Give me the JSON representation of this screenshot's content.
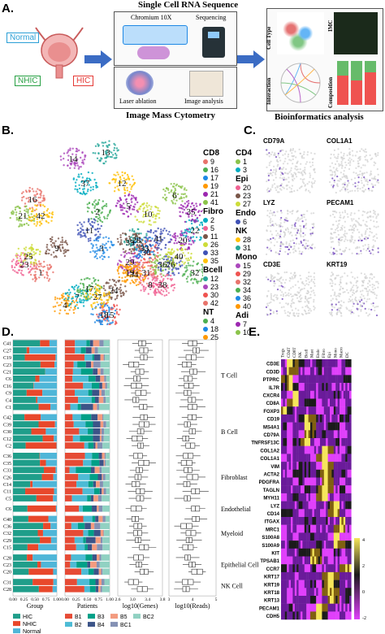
{
  "panelA": {
    "label": "A.",
    "rna_title": "Single Cell RNA Sequence",
    "chromium": "Chromium 10X",
    "sequencing": "Sequencing",
    "laser": "Laser ablation",
    "image_analysis": "Image analysis",
    "imc_title": "Image Mass Cytometry",
    "bio_title": "Bioinformatics analysis",
    "cell_type": "Cell Type",
    "imc": "IMC",
    "interaction": "Interaction",
    "composition": "Composition",
    "groups": [
      "Normal",
      "NHIC",
      "HIC"
    ]
  },
  "panelB": {
    "label": "B.",
    "cluster_numbers": [
      "1",
      "2",
      "3",
      "4",
      "5",
      "6",
      "7",
      "8",
      "9",
      "10",
      "11",
      "12",
      "13",
      "14",
      "15",
      "16",
      "17",
      "18",
      "19",
      "20",
      "21",
      "22",
      "23",
      "24",
      "25",
      "26",
      "27",
      "28",
      "29",
      "30",
      "31",
      "32",
      "33",
      "34",
      "35",
      "36",
      "37",
      "38",
      "39",
      "40",
      "41",
      "42"
    ],
    "legend": [
      {
        "group": "CD8",
        "items": [
          "9",
          "16",
          "17",
          "19",
          "21",
          "41"
        ]
      },
      {
        "group": "Fibro",
        "items": [
          "2",
          "5",
          "11",
          "26",
          "33",
          "35"
        ]
      },
      {
        "group": "Bcell",
        "items": [
          "12",
          "23",
          "30",
          "42"
        ]
      },
      {
        "group": "NT",
        "items": [
          "4",
          "18",
          "25"
        ]
      },
      {
        "group": "CD4",
        "items": [
          "1",
          "3"
        ]
      },
      {
        "group": "Epi",
        "items": [
          "20",
          "23",
          "27"
        ]
      },
      {
        "group": "Endo",
        "items": [
          "6"
        ]
      },
      {
        "group": "NK",
        "items": [
          "28",
          "31"
        ]
      },
      {
        "group": "Mono",
        "items": [
          "15",
          "29",
          "32",
          "34",
          "36",
          "40"
        ]
      },
      {
        "group": "Adi",
        "items": [
          "7",
          "10"
        ]
      }
    ],
    "colors": [
      "#e8736b",
      "#4caf50",
      "#1e88e5",
      "#ff9800",
      "#9c27b0",
      "#8bc34a",
      "#00acc1",
      "#f06292",
      "#795548",
      "#cddc39",
      "#3f51b5",
      "#ffc107",
      "#26a69a",
      "#ab47bc",
      "#ef5350"
    ]
  },
  "panelC": {
    "label": "C.",
    "genes": [
      "CD79A",
      "COL1A1",
      "LYZ",
      "PECAM1",
      "CD3E",
      "KRT19"
    ]
  },
  "panelD": {
    "label": "D.",
    "row_labels": [
      "C41",
      "C27",
      "C19",
      "C23",
      "C21",
      "C6",
      "C16",
      "C9",
      "C4",
      "C1",
      "C42",
      "C39",
      "C30",
      "C12",
      "C2",
      "C36",
      "C35",
      "C33",
      "C26",
      "C14",
      "C11",
      "C5",
      "C6",
      "C40",
      "C36",
      "C32",
      "C29",
      "C15",
      "C28",
      "C23",
      "C20",
      "C31",
      "C28"
    ],
    "cell_groups": [
      "T Cell",
      "B Cell",
      "Fibroblast",
      "Endothelial",
      "Myeloid",
      "Epithelial Cell",
      "NK Cell"
    ],
    "xlabels": [
      "Group",
      "Patients",
      "log10(Genes)",
      "log10(Reads)"
    ],
    "group_ticks": [
      "0.00",
      "0.25",
      "0.50",
      "0.75",
      "1.00"
    ],
    "patient_ticks": [
      "0.00",
      "0.25",
      "0.50",
      "0.75",
      "1.00"
    ],
    "genes_ticks": [
      "2.6",
      "3.0",
      "3.4",
      "3.8"
    ],
    "reads_ticks": [
      "3",
      "4",
      "5"
    ],
    "legend_group_title": "Group",
    "legend_group": [
      "HIC",
      "NHIC",
      "Normal"
    ],
    "legend_patients_title": "Patients",
    "legend_patients": [
      "B1",
      "B2",
      "B3",
      "B4",
      "B5",
      "BC1",
      "BC2"
    ],
    "group_colors": {
      "HIC": "#1f9e8a",
      "NHIC": "#e8482b",
      "Normal": "#4fb6d8"
    },
    "patient_colors": [
      "#e64b35",
      "#4dbbd5",
      "#00a087",
      "#3c5488",
      "#f39b7f",
      "#8491b4",
      "#91d1c2"
    ]
  },
  "panelE": {
    "label": "E.",
    "columns": [
      "Tregs",
      "CD4T",
      "CD8T",
      "NK",
      "Bcell",
      "Mast",
      "Endo",
      "Fibro",
      "Epi",
      "Mono",
      "Macro",
      "DC"
    ],
    "genes": [
      "CD3E",
      "CD3D",
      "PTPRC",
      "IL7R",
      "CXCR4",
      "CD8A",
      "FOXP3",
      "CD19",
      "MS4A1",
      "CD79A",
      "TNFRSF13C",
      "COL1A2",
      "COL1A1",
      "VIM",
      "ACTA2",
      "PDGFRA",
      "TAGLN",
      "MYH11",
      "LYZ",
      "CD14",
      "ITGAX",
      "MRC1",
      "S100A8",
      "S100A9",
      "KIT",
      "TPSAB1",
      "CCR7",
      "KRT17",
      "KRT19",
      "KRT18",
      "KRT13",
      "PECAM1",
      "CDH5"
    ],
    "scale_ticks": [
      "4",
      "2",
      "0",
      "-2"
    ]
  }
}
